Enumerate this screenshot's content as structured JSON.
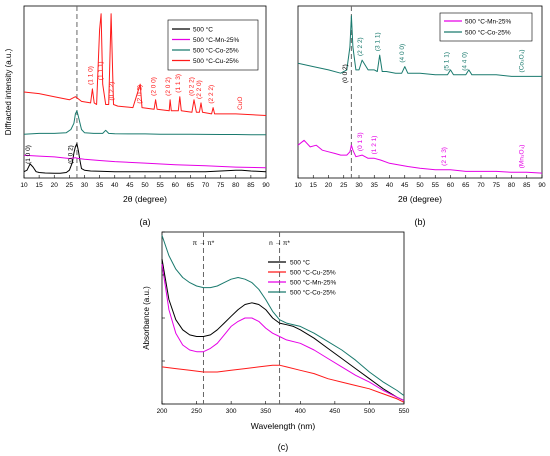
{
  "chart_data": [
    {
      "panel": "(a)",
      "type": "line",
      "xlabel": "2θ (degree)",
      "ylabel": "Diffracted intensity (a.u.)",
      "xlim": [
        10,
        90
      ],
      "xticks": [
        10,
        15,
        20,
        25,
        30,
        35,
        40,
        45,
        50,
        55,
        60,
        65,
        70,
        75,
        80,
        85,
        90
      ],
      "grid": false,
      "legend_position": "top-right",
      "vline_x": 27.5,
      "series": [
        {
          "name": "500 °C",
          "color": "#000000",
          "x": [
            10,
            11,
            12,
            13,
            14,
            15,
            17,
            20,
            22,
            24,
            25,
            26,
            26.5,
            27,
            27.5,
            28,
            28.5,
            29,
            30,
            32,
            35,
            40,
            45,
            50,
            55,
            60,
            65,
            70,
            75,
            80,
            82,
            85,
            90
          ],
          "y": [
            0.04,
            0.05,
            0.09,
            0.07,
            0.04,
            0.035,
            0.032,
            0.03,
            0.03,
            0.035,
            0.05,
            0.1,
            0.16,
            0.2,
            0.22,
            0.17,
            0.11,
            0.06,
            0.05,
            0.045,
            0.043,
            0.04,
            0.04,
            0.04,
            0.04,
            0.04,
            0.04,
            0.04,
            0.045,
            0.05,
            0.05,
            0.045,
            0.04
          ]
        },
        {
          "name": "500 °C-Mn-25%",
          "color": "#e600e6",
          "x": [
            10,
            15,
            20,
            25,
            27,
            28,
            30,
            35,
            40,
            50,
            60,
            70,
            80,
            90
          ],
          "y": [
            0.145,
            0.14,
            0.135,
            0.125,
            0.13,
            0.125,
            0.12,
            0.112,
            0.105,
            0.095,
            0.085,
            0.078,
            0.07,
            0.065
          ]
        },
        {
          "name": "500 °C-Co-25%",
          "color": "#1a7a6e",
          "x": [
            10,
            15,
            20,
            24,
            25.5,
            26.5,
            27,
            27.5,
            28,
            29,
            30,
            33,
            36,
            37,
            38,
            40,
            45,
            50,
            55,
            60,
            65,
            70,
            75,
            80,
            85,
            90
          ],
          "y": [
            0.28,
            0.285,
            0.285,
            0.29,
            0.31,
            0.35,
            0.41,
            0.43,
            0.39,
            0.31,
            0.29,
            0.285,
            0.285,
            0.305,
            0.285,
            0.283,
            0.282,
            0.282,
            0.28,
            0.28,
            0.28,
            0.279,
            0.278,
            0.278,
            0.277,
            0.276
          ]
        },
        {
          "name": "500 °C-Cu-25%",
          "color": "#ff1a1a",
          "x": [
            10,
            15,
            20,
            25,
            27,
            28,
            29,
            32,
            32.6,
            33.2,
            34,
            35,
            35.5,
            36,
            37,
            38,
            38.8,
            39.6,
            41,
            46,
            48.4,
            49,
            53,
            53.5,
            54,
            58,
            58.3,
            58.7,
            61,
            61.5,
            62,
            65.5,
            66.2,
            67,
            68,
            68.5,
            69,
            72,
            72.5,
            73,
            75,
            80,
            90
          ],
          "y": [
            0.55,
            0.54,
            0.52,
            0.5,
            0.52,
            0.505,
            0.49,
            0.48,
            0.57,
            0.48,
            0.47,
            0.95,
            1.05,
            0.6,
            0.47,
            0.47,
            1.05,
            0.47,
            0.46,
            0.45,
            0.6,
            0.45,
            0.44,
            0.5,
            0.44,
            0.43,
            0.5,
            0.43,
            0.43,
            0.52,
            0.43,
            0.42,
            0.5,
            0.42,
            0.42,
            0.48,
            0.42,
            0.41,
            0.45,
            0.41,
            0.41,
            0.41,
            0.4
          ]
        }
      ],
      "annotations": [
        {
          "text": "(1 1 1)",
          "x": 36.0,
          "color": "#ff1a1a"
        },
        {
          "text": "(0 2 2)",
          "x": 39.6,
          "color": "#ff1a1a"
        },
        {
          "text": "(1 1 0)",
          "x": 32.6,
          "color": "#ff1a1a"
        },
        {
          "text": "(2 0 2)",
          "x": 48.9,
          "color": "#ff1a1a"
        },
        {
          "text": "(2 0 0)",
          "x": 53.5,
          "color": "#ff1a1a"
        },
        {
          "text": "(2 0 2)",
          "x": 58.3,
          "color": "#ff1a1a"
        },
        {
          "text": "(1 1 3)",
          "x": 61.5,
          "color": "#ff1a1a"
        },
        {
          "text": "(0 2 2)",
          "x": 66.0,
          "color": "#ff1a1a"
        },
        {
          "text": "(2 2 0)",
          "x": 68.5,
          "color": "#ff1a1a"
        },
        {
          "text": "(2 2 2)",
          "x": 72.5,
          "color": "#ff1a1a"
        },
        {
          "text": "CuO",
          "x": 82.0,
          "color": "#ff1a1a"
        },
        {
          "text": "(1 0 0)",
          "x": 12.0,
          "color": "#000000"
        },
        {
          "text": "(0 0 2)",
          "x": 26.0,
          "color": "#000000"
        }
      ]
    },
    {
      "panel": "(b)",
      "type": "line",
      "xlabel": "2θ (degree)",
      "ylabel": "",
      "xlim": [
        10,
        90
      ],
      "xticks": [
        10,
        15,
        20,
        25,
        30,
        35,
        40,
        45,
        50,
        55,
        60,
        65,
        70,
        75,
        80,
        85,
        90
      ],
      "grid": false,
      "legend_position": "top-right",
      "vline_x": 27.5,
      "series": [
        {
          "name": "500 °C-Mn-25%",
          "color": "#e600e6",
          "x": [
            10,
            12,
            14,
            16,
            18,
            20,
            22,
            24,
            26,
            27,
            27.5,
            28,
            29,
            31,
            33,
            35,
            37,
            40,
            43,
            46,
            50,
            55,
            60,
            65,
            70,
            75,
            80,
            85,
            90
          ],
          "y": [
            0.2,
            0.23,
            0.19,
            0.2,
            0.17,
            0.16,
            0.15,
            0.14,
            0.14,
            0.16,
            0.2,
            0.17,
            0.13,
            0.14,
            0.12,
            0.12,
            0.11,
            0.09,
            0.08,
            0.07,
            0.06,
            0.05,
            0.05,
            0.04,
            0.04,
            0.04,
            0.035,
            0.035,
            0.03
          ]
        },
        {
          "name": "500 °C-Co-25%",
          "color": "#1a7a6e",
          "x": [
            10,
            15,
            20,
            24,
            26,
            27,
            27.5,
            28,
            29,
            30,
            31,
            33,
            35,
            36,
            36.8,
            37.6,
            39,
            42,
            44,
            45,
            46,
            50,
            55,
            59,
            60,
            61,
            65,
            66,
            67,
            70,
            75,
            80,
            85,
            90
          ],
          "y": [
            0.7,
            0.68,
            0.66,
            0.64,
            0.66,
            0.8,
            0.99,
            0.8,
            0.66,
            0.66,
            0.72,
            0.66,
            0.66,
            0.65,
            0.75,
            0.65,
            0.65,
            0.64,
            0.64,
            0.68,
            0.64,
            0.64,
            0.63,
            0.63,
            0.66,
            0.63,
            0.63,
            0.66,
            0.63,
            0.63,
            0.63,
            0.62,
            0.62,
            0.62
          ]
        }
      ],
      "annotations": [
        {
          "text": "(2 2 2)",
          "x": 31.0,
          "color": "#1a7a6e"
        },
        {
          "text": "(3 1 1)",
          "x": 36.8,
          "color": "#1a7a6e"
        },
        {
          "text": "(4 0 0)",
          "x": 44.8,
          "color": "#1a7a6e"
        },
        {
          "text": "(5 1 1)",
          "x": 59.3,
          "color": "#1a7a6e"
        },
        {
          "text": "(4 4 0)",
          "x": 65.2,
          "color": "#1a7a6e"
        },
        {
          "text": "(Co₃O₄)",
          "x": 84.0,
          "color": "#1a7a6e"
        },
        {
          "text": "(0 0 2)",
          "x": 26.0,
          "color": "#000000"
        },
        {
          "text": "(0 1 3)",
          "x": 31.0,
          "color": "#e600e6"
        },
        {
          "text": "(1 2 1)",
          "x": 35.5,
          "color": "#e600e6"
        },
        {
          "text": "(2 1 3)",
          "x": 58.5,
          "color": "#e600e6"
        },
        {
          "text": "(Mn₃O₄)",
          "x": 84.0,
          "color": "#e600e6"
        }
      ]
    },
    {
      "panel": "(c)",
      "type": "line",
      "xlabel": "Wavelength (nm)",
      "ylabel": "Absorbance (a.u.)",
      "xlim": [
        200,
        550
      ],
      "xticks": [
        200,
        250,
        300,
        350,
        400,
        450,
        500,
        550
      ],
      "grid": false,
      "legend_position": "top-left",
      "vlines": [
        {
          "x": 260,
          "label": "π → π*"
        },
        {
          "x": 370,
          "label": "n → π*"
        }
      ],
      "series": [
        {
          "name": "500 °C",
          "color": "#000000",
          "x": [
            200,
            210,
            220,
            230,
            240,
            250,
            260,
            270,
            280,
            290,
            300,
            310,
            320,
            330,
            340,
            350,
            360,
            370,
            380,
            390,
            400,
            420,
            440,
            460,
            480,
            500,
            520,
            540,
            550
          ],
          "y": [
            0.86,
            0.62,
            0.5,
            0.44,
            0.41,
            0.4,
            0.4,
            0.41,
            0.44,
            0.48,
            0.52,
            0.56,
            0.59,
            0.6,
            0.59,
            0.56,
            0.51,
            0.48,
            0.47,
            0.46,
            0.44,
            0.39,
            0.33,
            0.27,
            0.21,
            0.15,
            0.09,
            0.04,
            0.02
          ]
        },
        {
          "name": "500 °C-Cu-25%",
          "color": "#ff1a1a",
          "x": [
            200,
            220,
            240,
            260,
            280,
            300,
            320,
            340,
            360,
            370,
            380,
            400,
            420,
            440,
            460,
            480,
            500,
            520,
            540,
            550
          ],
          "y": [
            0.22,
            0.21,
            0.2,
            0.19,
            0.19,
            0.2,
            0.21,
            0.22,
            0.23,
            0.23,
            0.22,
            0.2,
            0.18,
            0.15,
            0.13,
            0.11,
            0.09,
            0.06,
            0.03,
            0.01
          ]
        },
        {
          "name": "500 °C-Mn-25%",
          "color": "#e600e6",
          "x": [
            200,
            210,
            220,
            230,
            240,
            250,
            260,
            270,
            280,
            290,
            300,
            310,
            320,
            330,
            340,
            350,
            360,
            370,
            380,
            400,
            420,
            440,
            460,
            480,
            500,
            520,
            540,
            550
          ],
          "y": [
            0.83,
            0.56,
            0.42,
            0.35,
            0.32,
            0.31,
            0.31,
            0.33,
            0.36,
            0.41,
            0.46,
            0.49,
            0.51,
            0.51,
            0.49,
            0.45,
            0.42,
            0.4,
            0.38,
            0.36,
            0.32,
            0.27,
            0.22,
            0.17,
            0.13,
            0.08,
            0.04,
            0.02
          ]
        },
        {
          "name": "500 °C-Co-25%",
          "color": "#1a7a6e",
          "x": [
            200,
            210,
            220,
            230,
            240,
            250,
            260,
            270,
            280,
            290,
            300,
            310,
            320,
            330,
            340,
            350,
            360,
            370,
            380,
            400,
            420,
            440,
            460,
            480,
            500,
            520,
            540,
            550
          ],
          "y": [
            1.0,
            0.88,
            0.8,
            0.75,
            0.72,
            0.7,
            0.69,
            0.69,
            0.7,
            0.72,
            0.74,
            0.75,
            0.74,
            0.72,
            0.68,
            0.62,
            0.55,
            0.5,
            0.48,
            0.46,
            0.42,
            0.37,
            0.32,
            0.26,
            0.19,
            0.13,
            0.08,
            0.05
          ]
        }
      ]
    }
  ],
  "panel_labels": {
    "a": "(a)",
    "b": "(b)",
    "c": "(c)"
  }
}
